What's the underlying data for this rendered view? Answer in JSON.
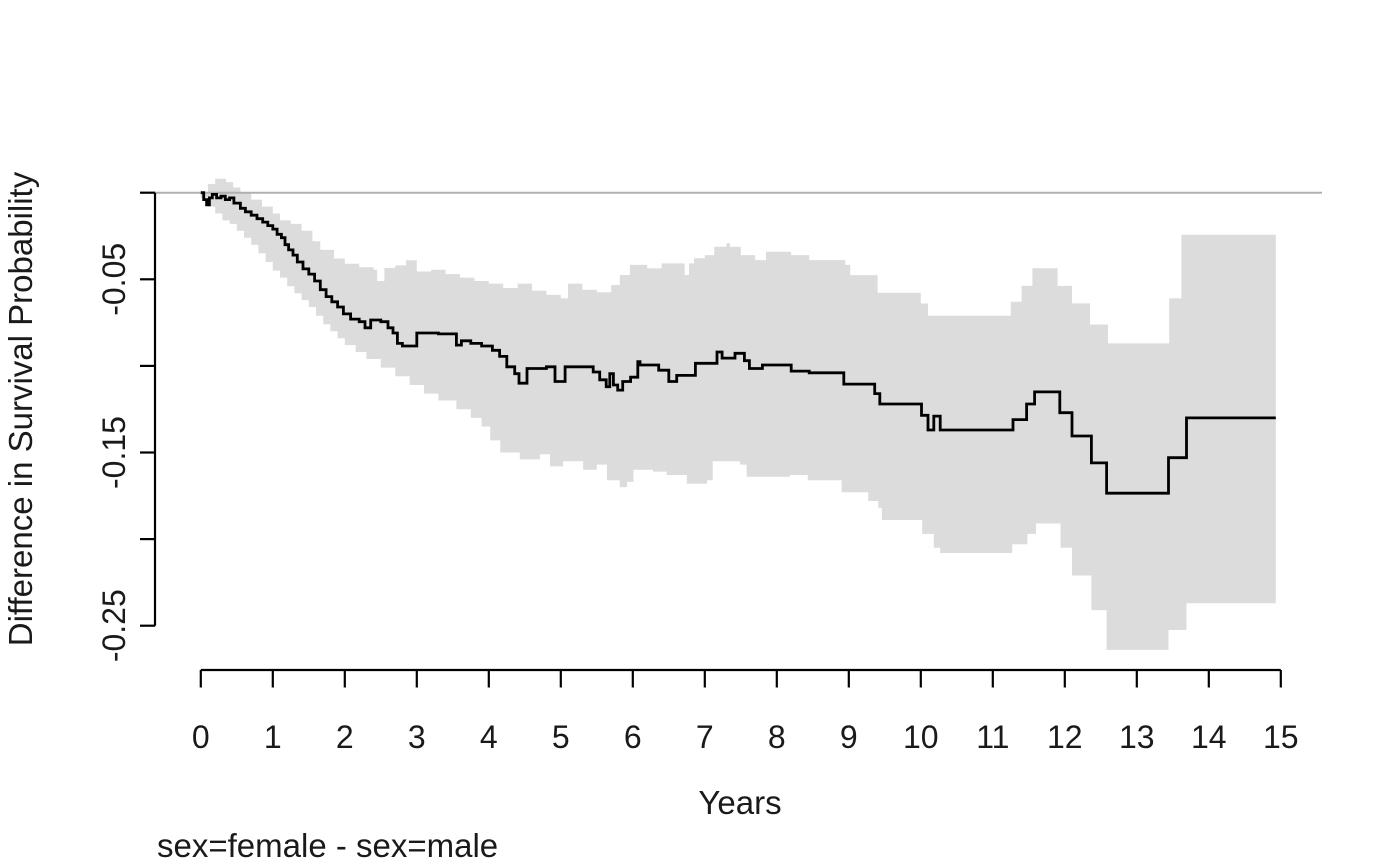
{
  "figure": {
    "y_axis_title": "Difference in Survival Probability",
    "x_axis_title": "Years",
    "caption": "sex=female - sex=male"
  },
  "chart_data": {
    "type": "line",
    "subtype": "step-function-with-confidence-band",
    "title": "",
    "xlabel": "Years",
    "ylabel": "Difference in Survival Probability",
    "annotation": "sex=female - sex=male",
    "grid": false,
    "legend": "none",
    "xlim": [
      0,
      15
    ],
    "ylim": [
      -0.27,
      0.015
    ],
    "x_end": 14.93,
    "reference_line_y": 0,
    "x_ticks": [
      0,
      1,
      2,
      3,
      4,
      5,
      6,
      7,
      8,
      9,
      10,
      11,
      12,
      13,
      14,
      15
    ],
    "y_ticks": [
      {
        "value": 0.0,
        "label": ""
      },
      {
        "value": -0.05,
        "label": "-0.05"
      },
      {
        "value": -0.1,
        "label": ""
      },
      {
        "value": -0.15,
        "label": "-0.15"
      },
      {
        "value": -0.2,
        "label": ""
      },
      {
        "value": -0.25,
        "label": "-0.25"
      }
    ],
    "colors": {
      "curve": "#000000",
      "band": "#dcdcdc",
      "reference_line": "#b0b0b0",
      "axis": "#000000",
      "text": "#1a1a1a"
    },
    "series": [
      {
        "name": "difference (sex=female - sex=male)",
        "type": "step",
        "x": [
          0,
          0.04,
          0.08,
          0.12,
          0.16,
          0.22,
          0.28,
          0.34,
          0.4,
          0.46,
          0.55,
          0.62,
          0.7,
          0.78,
          0.86,
          0.93,
          1.0,
          1.06,
          1.12,
          1.17,
          1.22,
          1.28,
          1.34,
          1.42,
          1.5,
          1.58,
          1.66,
          1.74,
          1.82,
          1.9,
          1.98,
          2.08,
          2.2,
          2.28,
          2.36,
          2.5,
          2.6,
          2.67,
          2.73,
          2.8,
          3.0,
          3.3,
          3.55,
          3.62,
          3.75,
          3.9,
          4.05,
          4.15,
          4.25,
          4.36,
          4.42,
          4.53,
          4.8,
          4.92,
          5.06,
          5.45,
          5.54,
          5.63,
          5.68,
          5.73,
          5.79,
          5.86,
          5.97,
          6.07,
          6.1,
          6.36,
          6.5,
          6.61,
          6.87,
          7.17,
          7.24,
          7.42,
          7.55,
          7.62,
          7.8,
          8.2,
          8.45,
          8.93,
          9.36,
          9.43,
          10.01,
          10.1,
          10.18,
          10.27,
          11.28,
          11.47,
          11.58,
          11.93,
          12.1,
          12.37,
          12.58,
          13.44,
          13.69
        ],
        "y": [
          0,
          -0.004,
          -0.007,
          -0.003,
          -0.001,
          -0.003,
          -0.002,
          -0.004,
          -0.003,
          -0.006,
          -0.009,
          -0.011,
          -0.013,
          -0.015,
          -0.017,
          -0.019,
          -0.021,
          -0.024,
          -0.026,
          -0.03,
          -0.033,
          -0.036,
          -0.04,
          -0.044,
          -0.047,
          -0.051,
          -0.056,
          -0.06,
          -0.063,
          -0.066,
          -0.07,
          -0.073,
          -0.0745,
          -0.078,
          -0.0735,
          -0.0745,
          -0.078,
          -0.081,
          -0.087,
          -0.0885,
          -0.081,
          -0.0815,
          -0.088,
          -0.0855,
          -0.087,
          -0.0885,
          -0.091,
          -0.0945,
          -0.1005,
          -0.1045,
          -0.11,
          -0.1015,
          -0.1005,
          -0.109,
          -0.1005,
          -0.1035,
          -0.108,
          -0.112,
          -0.1045,
          -0.111,
          -0.114,
          -0.109,
          -0.1065,
          -0.0975,
          -0.0995,
          -0.1025,
          -0.109,
          -0.1055,
          -0.0985,
          -0.092,
          -0.0955,
          -0.0927,
          -0.097,
          -0.1015,
          -0.0995,
          -0.103,
          -0.104,
          -0.1105,
          -0.116,
          -0.122,
          -0.1285,
          -0.137,
          -0.129,
          -0.137,
          -0.131,
          -0.122,
          -0.115,
          -0.127,
          -0.1405,
          -0.156,
          -0.1735,
          -0.153,
          -0.13
        ]
      },
      {
        "name": "95% CI upper",
        "type": "step",
        "x": [
          0,
          0.1,
          0.2,
          0.35,
          0.45,
          0.55,
          0.7,
          0.85,
          1.0,
          1.1,
          1.25,
          1.4,
          1.55,
          1.66,
          1.85,
          2.0,
          2.2,
          2.4,
          2.45,
          2.55,
          2.7,
          2.85,
          3.0,
          3.2,
          3.4,
          3.6,
          3.8,
          4.0,
          4.2,
          4.4,
          4.6,
          4.8,
          5.0,
          5.1,
          5.3,
          5.5,
          5.7,
          5.82,
          5.96,
          6.2,
          6.4,
          6.72,
          6.78,
          6.85,
          7.0,
          7.13,
          7.3,
          7.35,
          7.5,
          7.7,
          7.85,
          8.2,
          8.45,
          8.95,
          9.02,
          9.4,
          10.0,
          10.1,
          11.25,
          11.4,
          11.55,
          11.9,
          12.1,
          12.35,
          12.6,
          13.45,
          13.62
        ],
        "y": [
          0.0,
          0.005,
          0.008,
          0.006,
          0.003,
          0.0,
          -0.004,
          -0.008,
          -0.012,
          -0.016,
          -0.018,
          -0.022,
          -0.028,
          -0.033,
          -0.038,
          -0.041,
          -0.043,
          -0.0445,
          -0.051,
          -0.0435,
          -0.042,
          -0.039,
          -0.0455,
          -0.0445,
          -0.047,
          -0.049,
          -0.051,
          -0.0525,
          -0.055,
          -0.0525,
          -0.0565,
          -0.059,
          -0.061,
          -0.0525,
          -0.056,
          -0.0575,
          -0.0533,
          -0.0475,
          -0.0417,
          -0.0437,
          -0.0408,
          -0.0475,
          -0.0408,
          -0.0379,
          -0.036,
          -0.0312,
          -0.0292,
          -0.0312,
          -0.036,
          -0.0389,
          -0.0341,
          -0.036,
          -0.0389,
          -0.0417,
          -0.0476,
          -0.0578,
          -0.064,
          -0.0711,
          -0.063,
          -0.0538,
          -0.0436,
          -0.0538,
          -0.0639,
          -0.0761,
          -0.087,
          -0.061,
          -0.0243
        ]
      },
      {
        "name": "95% CI lower",
        "type": "step",
        "x": [
          0,
          0.1,
          0.2,
          0.3,
          0.4,
          0.5,
          0.6,
          0.7,
          0.8,
          0.9,
          1.0,
          1.1,
          1.2,
          1.3,
          1.4,
          1.5,
          1.6,
          1.7,
          1.8,
          1.9,
          2.0,
          2.15,
          2.3,
          2.5,
          2.7,
          2.9,
          3.1,
          3.3,
          3.55,
          3.75,
          3.9,
          4.02,
          4.16,
          4.43,
          4.71,
          4.85,
          5.03,
          5.31,
          5.5,
          5.64,
          5.82,
          5.92,
          6.01,
          6.28,
          6.47,
          6.75,
          7.03,
          7.11,
          7.49,
          7.58,
          7.95,
          8.18,
          8.43,
          8.9,
          9.27,
          9.41,
          9.46,
          10.02,
          10.18,
          10.27,
          11.27,
          11.48,
          11.6,
          11.94,
          12.1,
          12.37,
          12.58,
          13.44,
          13.69
        ],
        "y": [
          -0.003,
          -0.008,
          -0.012,
          -0.016,
          -0.018,
          -0.022,
          -0.026,
          -0.03,
          -0.035,
          -0.04,
          -0.045,
          -0.049,
          -0.054,
          -0.058,
          -0.062,
          -0.066,
          -0.071,
          -0.076,
          -0.08,
          -0.084,
          -0.088,
          -0.092,
          -0.096,
          -0.101,
          -0.106,
          -0.111,
          -0.116,
          -0.12,
          -0.125,
          -0.13,
          -0.135,
          -0.143,
          -0.15,
          -0.154,
          -0.151,
          -0.158,
          -0.155,
          -0.16,
          -0.157,
          -0.166,
          -0.17,
          -0.167,
          -0.16,
          -0.161,
          -0.163,
          -0.168,
          -0.166,
          -0.155,
          -0.157,
          -0.164,
          -0.164,
          -0.163,
          -0.166,
          -0.173,
          -0.178,
          -0.182,
          -0.189,
          -0.197,
          -0.205,
          -0.208,
          -0.203,
          -0.197,
          -0.191,
          -0.205,
          -0.221,
          -0.241,
          -0.264,
          -0.2525,
          -0.237
        ]
      }
    ]
  }
}
